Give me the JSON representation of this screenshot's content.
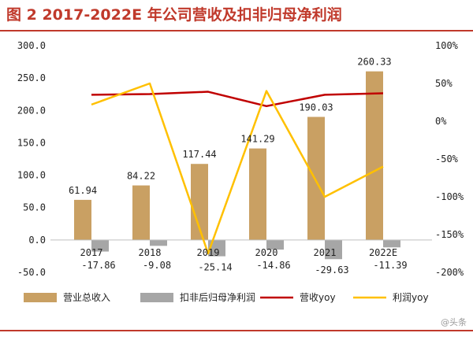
{
  "title": "图 2  2017-2022E 年公司营收及扣非归母净利润",
  "watermark": "@头条",
  "colors": {
    "revenue_bar": "#c9a063",
    "profit_bar": "#a6a6a6",
    "revenue_yoy": "#c00000",
    "profit_yoy": "#ffc000",
    "accent": "#c0392b"
  },
  "chart_data": {
    "type": "bar",
    "categories": [
      "2017",
      "2018",
      "2019",
      "2020",
      "2021",
      "2022E"
    ],
    "series": [
      {
        "name": "营业总收入",
        "kind": "bar",
        "axis": "left",
        "values": [
          61.94,
          84.22,
          117.44,
          141.29,
          190.03,
          260.33
        ],
        "labels": [
          "61.94",
          "84.22",
          "117.44",
          "141.29",
          "190.03",
          "260.33"
        ]
      },
      {
        "name": "扣非后归母净利润",
        "kind": "bar",
        "axis": "left",
        "values": [
          -17.86,
          -9.08,
          -25.14,
          -14.86,
          -29.63,
          -11.39
        ],
        "labels": [
          "-17.86",
          "-9.08",
          "-25.14",
          "-14.86",
          "-29.63",
          "-11.39"
        ]
      },
      {
        "name": "营收yoy",
        "kind": "line",
        "axis": "right",
        "values": [
          35,
          36,
          39,
          20,
          35,
          37
        ]
      },
      {
        "name": "利润yoy",
        "kind": "line",
        "axis": "right",
        "values": [
          22,
          50,
          -175,
          40,
          -100,
          -60
        ]
      }
    ],
    "left_axis": {
      "min": -50,
      "max": 300,
      "step": 50,
      "tick_labels": [
        "-50.0",
        "0.0",
        "50.0",
        "100.0",
        "150.0",
        "200.0",
        "250.0",
        "300.0"
      ]
    },
    "right_axis": {
      "min": -200,
      "max": 100,
      "step": 50,
      "tick_labels": [
        "-200%",
        "-150%",
        "-100%",
        "-50%",
        "0%",
        "50%",
        "100%"
      ]
    },
    "grid": false,
    "legend_position": "bottom"
  }
}
